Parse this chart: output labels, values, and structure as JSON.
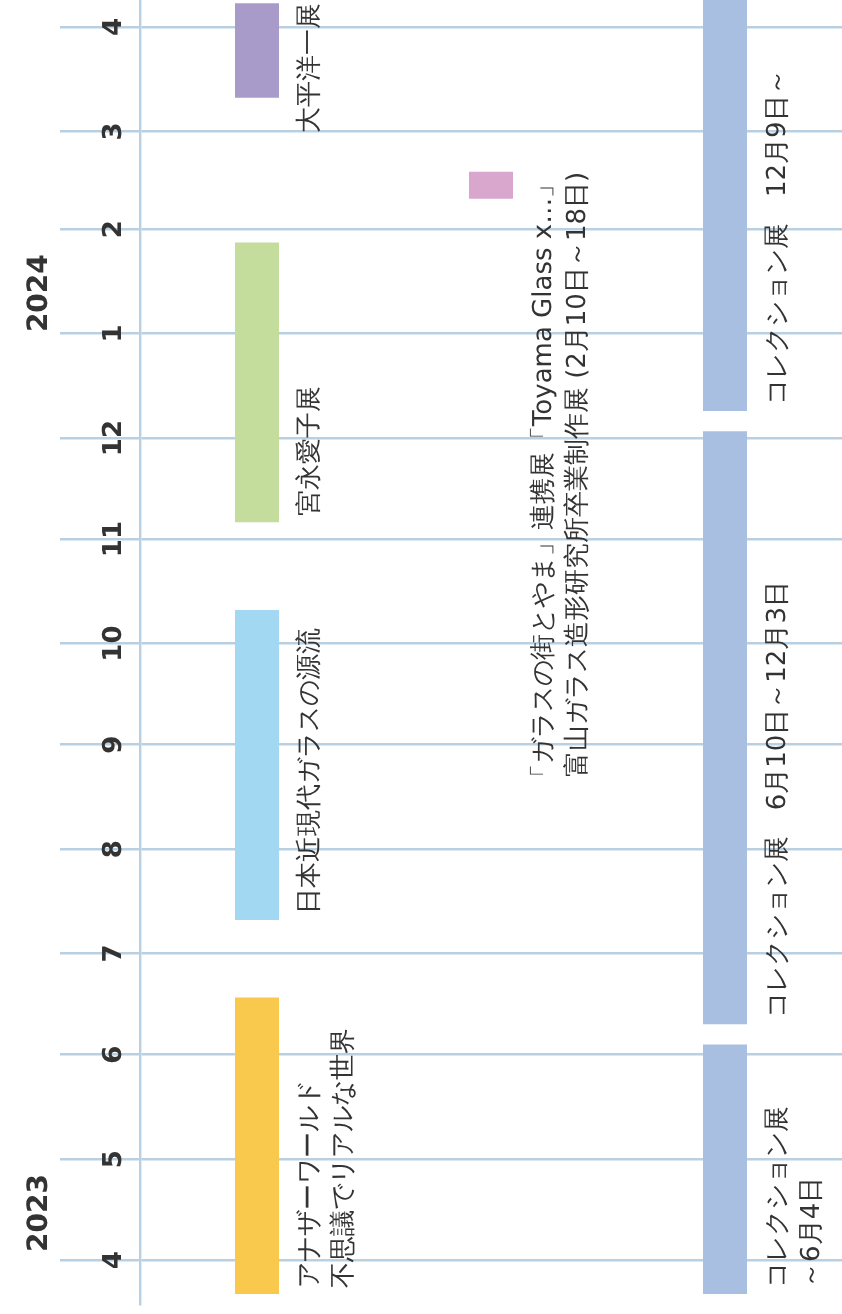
{
  "chart_data": {
    "type": "bar",
    "categories": [
      null,
      null,
      null
    ],
    "bands": [
      {
        "axis": "y",
        "from": "2023-03-22",
        "to": "2023-06-18",
        "label": "アナザーワールド",
        "color": "#f9c94e"
      },
      {
        "axis": "y",
        "from": "2023-07-11",
        "to": "2023-10-11",
        "label": "日本近現代ガラスの源流",
        "color": "#a3d8f2"
      },
      {
        "axis": "y",
        "from": "2023-11-06",
        "to": "2024-01-28",
        "label": "宮永愛子展",
        "color": "#c4dc9c"
      },
      {
        "axis": "y",
        "from": "2024-03-11",
        "to": "2024-04-08",
        "label": "大平洋一展",
        "color": "#a99bc9"
      },
      {
        "axis": "y",
        "from": "2024-02-10",
        "to": "2024-02-18",
        "label": "「ガラスの街とやま」連携展「Toyama Glass x…」",
        "color": "#d9a7cd"
      },
      {
        "axis": "y",
        "from": "2023-03-22",
        "to": "2023-06-04",
        "label": "コレクション展",
        "color": "#a9bfe2"
      },
      {
        "axis": "y",
        "from": "2023-06-10",
        "to": "2023-12-03",
        "label": "コレクション展　6月10日～12月3日",
        "color": "#a9bfe2"
      },
      {
        "axis": "y",
        "from": "2023-12-09",
        "to": "2024-04-09",
        "label": "コレクション展　12月9日～",
        "color": "#a9bfe2"
      }
    ],
    "annotations": [
      "不思議でリアルな世界",
      "富山ガラス造形研究所卒業制作展 (2月10日～18日)",
      "～6月4日"
    ],
    "ylim": [
      "2023-03-19",
      "2024-04-09"
    ],
    "yticks": [
      {
        "value": "2023-04",
        "label": "4"
      },
      {
        "value": "2023-05",
        "label": "5"
      },
      {
        "value": "2023-06",
        "label": "6"
      },
      {
        "value": "2023-07",
        "label": "7"
      },
      {
        "value": "2023-08",
        "label": "8"
      },
      {
        "value": "2023-09",
        "label": "9"
      },
      {
        "value": "2023-10",
        "label": "10"
      },
      {
        "value": "2023-11",
        "label": "11"
      },
      {
        "value": "2023-12",
        "label": "12"
      },
      {
        "value": "2024-01",
        "label": "1"
      },
      {
        "value": "2024-02",
        "label": "2"
      },
      {
        "value": "2024-03",
        "label": "3"
      },
      {
        "value": "2024-04",
        "label": "4"
      }
    ],
    "y2lim": [
      "2023-03-19",
      "2024-04-09"
    ],
    "y2ticks": [
      {
        "value": "2023-04-15",
        "label": "2023"
      },
      {
        "value": "2024-01-13",
        "label": "2024"
      }
    ],
    "grid": "y"
  }
}
